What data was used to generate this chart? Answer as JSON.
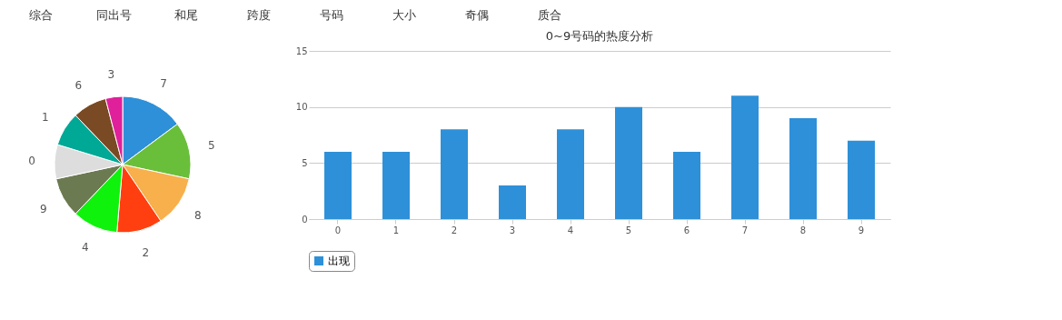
{
  "chart_data": [
    {
      "type": "other",
      "annotations": [
        "综合",
        "同出号",
        "和尾",
        "跨度",
        "号码",
        "大小",
        "奇偶",
        "质合"
      ]
    },
    {
      "type": "pie",
      "categories": [
        "7",
        "5",
        "8",
        "2",
        "4",
        "9",
        "0",
        "1",
        "6",
        "3"
      ],
      "values": [
        14.87,
        13.51,
        12.16,
        10.81,
        10.81,
        9.46,
        8.11,
        8.11,
        8.11,
        4.05
      ],
      "colors": [
        "#2e90d8",
        "#6abf3a",
        "#f7b04b",
        "#ff3f0f",
        "#0ff20c",
        "#6c7a51",
        "#dddddd",
        "#00a896",
        "#7a4a24",
        "#e01f9b"
      ]
    },
    {
      "type": "bar",
      "title": "0~9号码的热度分析",
      "categories": [
        "0",
        "1",
        "2",
        "3",
        "4",
        "5",
        "6",
        "7",
        "8",
        "9"
      ],
      "series": [
        {
          "name": "出现",
          "color": "#2e90d8",
          "values": [
            6,
            6,
            8,
            3,
            8,
            10,
            6,
            11,
            9,
            7
          ]
        }
      ],
      "ylim": [
        0,
        15
      ],
      "yticks": [
        0,
        5,
        10,
        15
      ],
      "grid": "y",
      "legend": "bottom"
    }
  ]
}
